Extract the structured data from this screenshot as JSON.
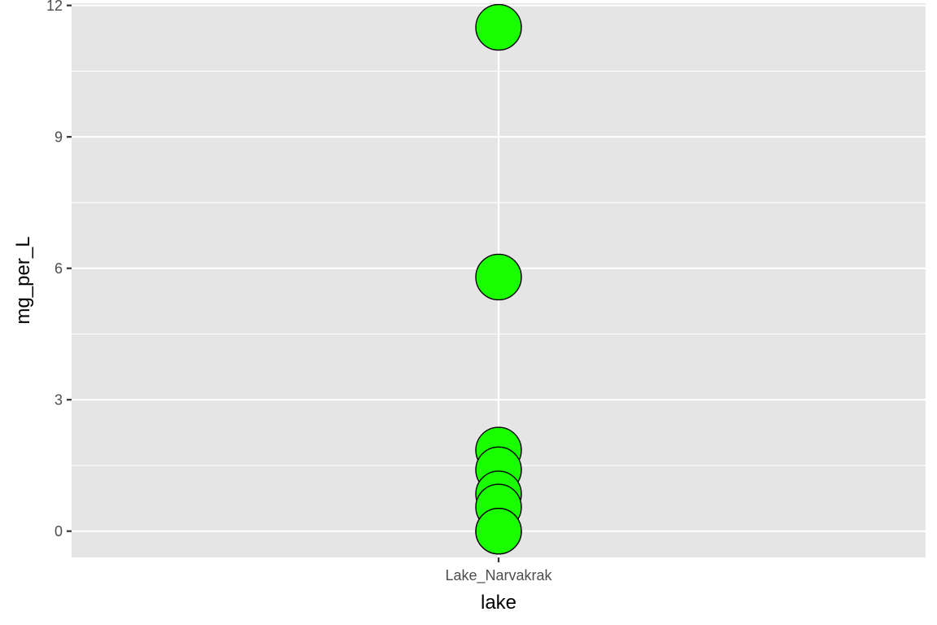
{
  "chart_data": {
    "type": "scatter",
    "title": "",
    "xlabel": "lake",
    "ylabel": "mg_per_L",
    "categories": [
      "Lake_Narvakrak"
    ],
    "ylim": [
      -0.6,
      12.05
    ],
    "yticks": [
      0,
      3,
      6,
      9,
      12
    ],
    "yticks_labels": [
      "0",
      "3",
      "6",
      "9",
      "12"
    ],
    "grid": true,
    "legend": "none",
    "series": [
      {
        "category": "Lake_Narvakrak",
        "values": [
          11.5,
          5.8,
          1.85,
          1.4,
          0.85,
          0.55,
          0.0,
          0.0
        ]
      }
    ],
    "colors": {
      "panel_background": "#e5e5e5",
      "grid": "#ffffff",
      "point_fill": "#1aff00",
      "point_stroke": "#000000",
      "tick": "#333333"
    }
  }
}
